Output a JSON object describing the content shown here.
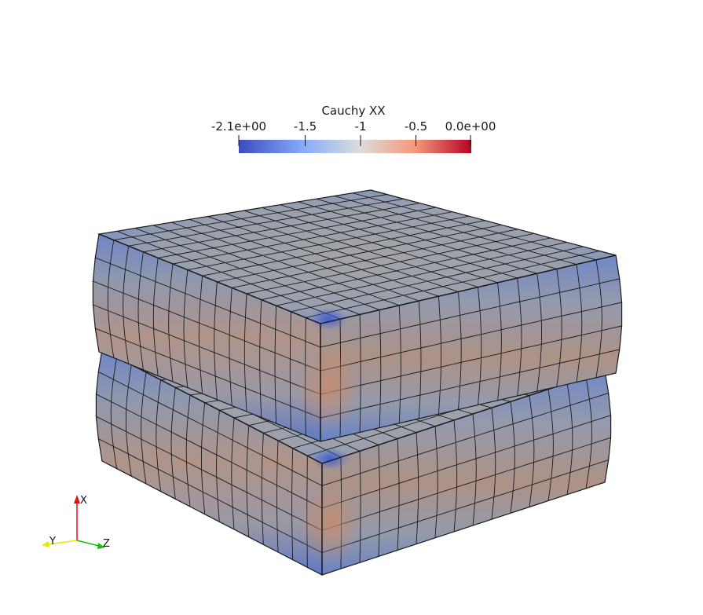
{
  "colorbar": {
    "title": "Cauchy XX",
    "tick_labels": [
      "-2.1e+00",
      "-1.5",
      "-1",
      "-0.5",
      "0.0e+00"
    ],
    "tick_values": [
      -2.1,
      -1.5,
      -1.0,
      -0.5,
      0.0
    ],
    "range": [
      -2.1,
      0.0
    ],
    "colormap": [
      "#3b4cc0",
      "#88acfb",
      "#dcdddd",
      "#f4987a",
      "#b40426"
    ]
  },
  "axes_triad": {
    "x_label": "X",
    "y_label": "Y",
    "z_label": "Z",
    "x_color": "#e0101a",
    "y_color": "#e8e800",
    "z_color": "#10c010"
  },
  "mesh": {
    "edge_color": "#1a1a1a",
    "surface_colors": {
      "mid": "#a39288",
      "top": "#9aa0ac",
      "edge_band": "#5b74c6",
      "warm": "#b98a72"
    }
  }
}
